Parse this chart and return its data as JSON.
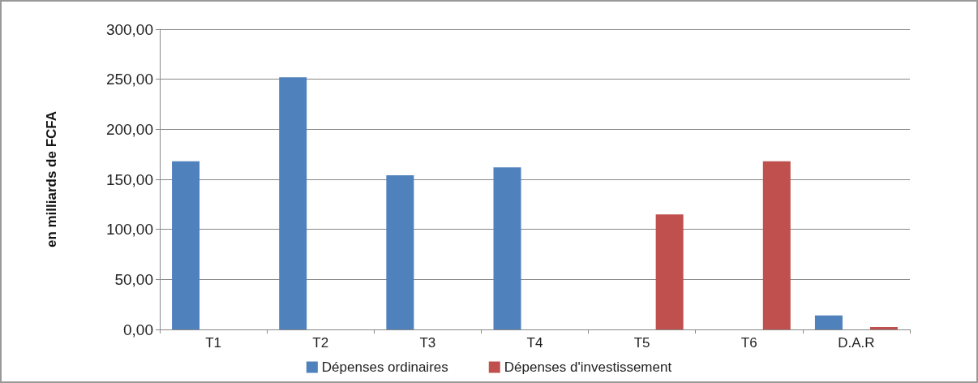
{
  "chart_data": {
    "type": "bar",
    "ylabel": "en milliards de FCFA",
    "categories": [
      "T1",
      "T2",
      "T3",
      "T4",
      "T5",
      "T6",
      "D.A.R"
    ],
    "series": [
      {
        "name": "Dépenses ordinaires",
        "color": "#4f81bd",
        "values": [
          168,
          252,
          154,
          162,
          null,
          null,
          14
        ]
      },
      {
        "name": "Dépenses d'investissement",
        "color": "#c0504d",
        "values": [
          null,
          null,
          null,
          null,
          115,
          168,
          2.5
        ]
      }
    ],
    "ylim": [
      0,
      300
    ],
    "yticks": [
      {
        "value": 0,
        "label": "0,00"
      },
      {
        "value": 50,
        "label": "50,00"
      },
      {
        "value": 100,
        "label": "100,00"
      },
      {
        "value": 150,
        "label": "150,00"
      },
      {
        "value": 200,
        "label": "200,00"
      },
      {
        "value": 250,
        "label": "250,00"
      },
      {
        "value": 300,
        "label": "300,00"
      }
    ],
    "grid": "y",
    "legend": "bottom"
  }
}
